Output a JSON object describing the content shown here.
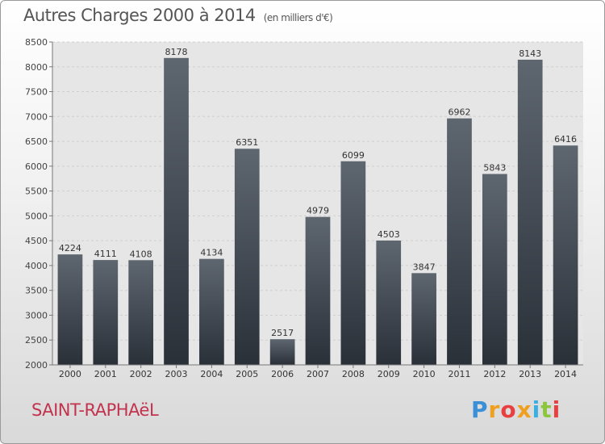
{
  "title": "Autres Charges 2000 à 2014",
  "unit": "(en milliers d'€)",
  "commune": "SAINT-RAPHAëL",
  "logo": {
    "text": "Proxiti",
    "colors": [
      "#3a8fd6",
      "#f0a020",
      "#e84040",
      "#f0a020",
      "#3ab0e0",
      "#8cc63f",
      "#e84040"
    ]
  },
  "colors": {
    "bar_top": "#5e6670",
    "bar_bottom": "#2a3038",
    "grid": "#cfcfcf",
    "plot_bg": "#e6e6e6"
  },
  "chart_data": {
    "type": "bar",
    "title": "Autres Charges 2000 à 2014",
    "subtitle": "(en milliers d'€)",
    "categories": [
      "2000",
      "2001",
      "2002",
      "2003",
      "2004",
      "2005",
      "2006",
      "2007",
      "2008",
      "2009",
      "2010",
      "2011",
      "2012",
      "2013",
      "2014"
    ],
    "values": [
      4224,
      4111,
      4108,
      8178,
      4134,
      6351,
      2517,
      4979,
      6099,
      4503,
      3847,
      6962,
      5843,
      8143,
      6416
    ],
    "ylim": [
      2000,
      8500
    ],
    "yticks": [
      2000,
      2500,
      3000,
      3500,
      4000,
      4500,
      5000,
      5500,
      6000,
      6500,
      7000,
      7500,
      8000,
      8500
    ],
    "grid": true
  }
}
